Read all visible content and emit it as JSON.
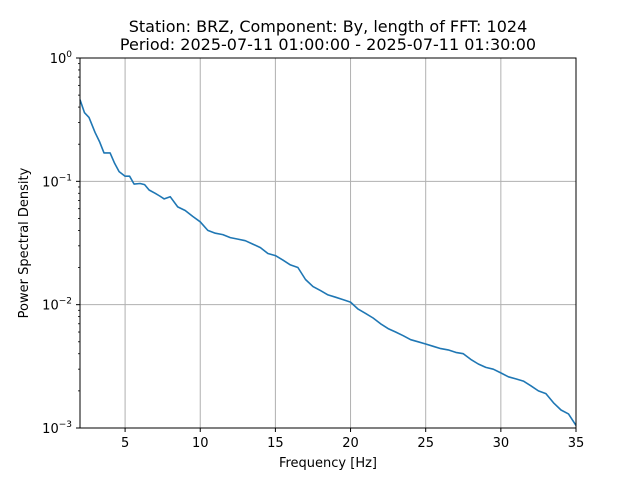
{
  "chart_data": {
    "type": "line",
    "title_line1": "Station: BRZ, Component: By, length of FFT: 1024",
    "title_line2": "Period: 2025-07-11 01:00:00 - 2025-07-11 01:30:00",
    "xlabel": "Frequency [Hz]",
    "ylabel": "Power Spectral Density",
    "xlim": [
      2,
      35
    ],
    "ylim": [
      0.001,
      1
    ],
    "yscale": "log",
    "grid": true,
    "x_ticks": [
      {
        "value": 5,
        "label": "5"
      },
      {
        "value": 10,
        "label": "10"
      },
      {
        "value": 15,
        "label": "15"
      },
      {
        "value": 20,
        "label": "20"
      },
      {
        "value": 25,
        "label": "25"
      },
      {
        "value": 30,
        "label": "30"
      },
      {
        "value": 35,
        "label": "35"
      }
    ],
    "y_ticks": [
      {
        "value": 1,
        "base": "10",
        "exp": "0"
      },
      {
        "value": 0.1,
        "base": "10",
        "exp": "−1"
      },
      {
        "value": 0.01,
        "base": "10",
        "exp": "−2"
      },
      {
        "value": 0.001,
        "base": "10",
        "exp": "−3"
      }
    ],
    "series": [
      {
        "color": "#1f77b4",
        "x": [
          2.0,
          2.3,
          2.6,
          3.0,
          3.3,
          3.6,
          4.0,
          4.3,
          4.6,
          5.0,
          5.3,
          5.6,
          6.0,
          6.3,
          6.6,
          7.0,
          7.3,
          7.6,
          8.0,
          8.5,
          9.0,
          9.5,
          10.0,
          10.5,
          11.0,
          11.5,
          12.0,
          12.5,
          13.0,
          13.5,
          14.0,
          14.5,
          15.0,
          15.5,
          16.0,
          16.5,
          17.0,
          17.5,
          18.0,
          18.5,
          19.0,
          19.5,
          20.0,
          20.5,
          21.0,
          21.5,
          22.0,
          22.5,
          23.0,
          23.5,
          24.0,
          24.5,
          25.0,
          25.5,
          26.0,
          26.5,
          27.0,
          27.5,
          28.0,
          28.5,
          29.0,
          29.5,
          30.0,
          30.5,
          31.0,
          31.5,
          32.0,
          32.5,
          33.0,
          33.5,
          34.0,
          34.5,
          35.0
        ],
        "y": [
          0.46,
          0.36,
          0.33,
          0.25,
          0.21,
          0.17,
          0.17,
          0.14,
          0.12,
          0.11,
          0.11,
          0.095,
          0.096,
          0.094,
          0.085,
          0.08,
          0.076,
          0.072,
          0.075,
          0.062,
          0.058,
          0.052,
          0.047,
          0.04,
          0.038,
          0.037,
          0.035,
          0.034,
          0.033,
          0.031,
          0.029,
          0.026,
          0.025,
          0.023,
          0.021,
          0.02,
          0.016,
          0.014,
          0.013,
          0.012,
          0.0115,
          0.011,
          0.0105,
          0.0092,
          0.0085,
          0.0078,
          0.007,
          0.0064,
          0.006,
          0.0056,
          0.0052,
          0.005,
          0.0048,
          0.0046,
          0.0044,
          0.0043,
          0.0041,
          0.004,
          0.0036,
          0.0033,
          0.0031,
          0.003,
          0.0028,
          0.0026,
          0.0025,
          0.0024,
          0.0022,
          0.002,
          0.0019,
          0.0016,
          0.0014,
          0.0013,
          0.00105
        ]
      }
    ]
  }
}
